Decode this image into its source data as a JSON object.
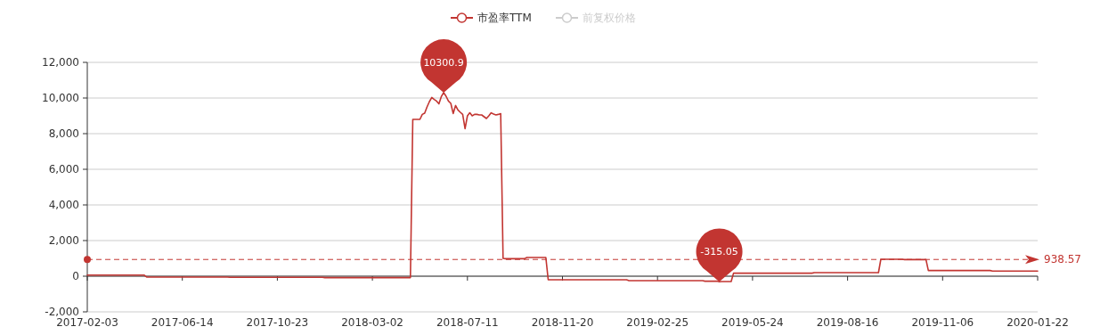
{
  "chart_data": {
    "type": "line",
    "legend": "top",
    "grid": "y",
    "line_style": "solid",
    "categories": [
      "2017-02-03",
      null,
      null,
      null,
      null,
      null,
      null,
      null,
      null,
      null,
      null,
      null,
      null,
      null,
      null,
      null,
      null,
      null,
      null,
      null,
      null,
      null,
      null,
      null,
      null,
      null,
      null,
      null,
      null,
      null,
      null,
      null,
      null,
      null,
      null,
      null,
      null,
      null,
      null,
      null,
      "2017-06-14",
      null,
      null,
      null,
      null,
      null,
      null,
      null,
      null,
      null,
      null,
      null,
      null,
      null,
      null,
      null,
      null,
      null,
      null,
      null,
      null,
      null,
      null,
      null,
      null,
      null,
      null,
      null,
      null,
      null,
      null,
      null,
      null,
      null,
      null,
      null,
      null,
      null,
      null,
      null,
      "2017-10-23",
      null,
      null,
      null,
      null,
      null,
      null,
      null,
      null,
      null,
      null,
      null,
      null,
      null,
      null,
      null,
      null,
      null,
      null,
      null,
      null,
      null,
      null,
      null,
      null,
      null,
      null,
      null,
      null,
      null,
      null,
      null,
      null,
      null,
      null,
      null,
      null,
      null,
      null,
      null,
      "2018-03-02",
      null,
      null,
      null,
      null,
      null,
      null,
      null,
      null,
      null,
      null,
      null,
      null,
      null,
      null,
      null,
      null,
      null,
      null,
      null,
      null,
      null,
      null,
      null,
      null,
      null,
      null,
      null,
      null,
      null,
      null,
      null,
      null,
      null,
      null,
      null,
      null,
      null,
      null,
      null,
      "2018-07-11",
      null,
      null,
      null,
      null,
      null,
      null,
      null,
      null,
      null,
      null,
      null,
      null,
      null,
      null,
      null,
      null,
      null,
      null,
      null,
      null,
      null,
      null,
      null,
      null,
      null,
      null,
      null,
      null,
      null,
      null,
      null,
      null,
      null,
      null,
      null,
      null,
      null,
      null,
      null,
      "2018-11-20",
      null,
      null,
      null,
      null,
      null,
      null,
      null,
      null,
      null,
      null,
      null,
      null,
      null,
      null,
      null,
      null,
      null,
      null,
      null,
      null,
      null,
      null,
      null,
      null,
      null,
      null,
      null,
      null,
      null,
      null,
      null,
      null,
      null,
      null,
      null,
      null,
      null,
      null,
      null,
      "2019-02-25",
      null,
      null,
      null,
      null,
      null,
      null,
      null,
      null,
      null,
      null,
      null,
      null,
      null,
      null,
      null,
      null,
      null,
      null,
      null,
      null,
      null,
      null,
      null,
      null,
      null,
      null,
      null,
      null,
      null,
      null,
      null,
      null,
      null,
      null,
      null,
      null,
      null,
      null,
      null,
      "2019-05-24",
      null,
      null,
      null,
      null,
      null,
      null,
      null,
      null,
      null,
      null,
      null,
      null,
      null,
      null,
      null,
      null,
      null,
      null,
      null,
      null,
      null,
      null,
      null,
      null,
      null,
      null,
      null,
      null,
      null,
      null,
      null,
      null,
      null,
      null,
      null,
      null,
      null,
      null,
      null,
      "2019-08-16",
      null,
      null,
      null,
      null,
      null,
      null,
      null,
      null,
      null,
      null,
      null,
      null,
      null,
      null,
      null,
      null,
      null,
      null,
      null,
      null,
      null,
      null,
      null,
      null,
      null,
      null,
      null,
      null,
      null,
      null,
      null,
      null,
      null,
      null,
      null,
      null,
      null,
      null,
      null,
      "2019-11-06",
      null,
      null,
      null,
      null,
      null,
      null,
      null,
      null,
      null,
      null,
      null,
      null,
      null,
      null,
      null,
      null,
      null,
      null,
      null,
      null,
      null,
      null,
      null,
      null,
      null,
      null,
      null,
      null,
      null,
      null,
      null,
      null,
      null,
      null,
      null,
      null,
      null,
      null,
      null,
      "2020-01-22"
    ],
    "ylim": [
      -2000,
      12000
    ],
    "yticks": [
      {
        "value": -2000,
        "label": "-2,000"
      },
      0,
      {
        "value": 2000,
        "label": "2,000"
      },
      {
        "value": 4000,
        "label": "4,000"
      },
      {
        "value": 6000,
        "label": "6,000"
      },
      {
        "value": 8000,
        "label": "8,000"
      },
      {
        "value": 10000,
        "label": "10,000"
      },
      {
        "value": 12000,
        "label": "12,000"
      }
    ],
    "series": [
      {
        "name": "市盈率TTM",
        "color": "#c23531",
        "values": [
          60,
          60,
          60,
          60,
          60,
          60,
          60,
          60,
          60,
          60,
          60,
          60,
          60,
          60,
          60,
          60,
          60,
          60,
          60,
          60,
          60,
          60,
          60,
          60,
          60,
          -50,
          -50,
          -50,
          -50,
          -50,
          -50,
          -50,
          -50,
          -50,
          -50,
          -50,
          -50,
          -50,
          -50,
          -50,
          -50,
          -50,
          -50,
          -50,
          -50,
          -50,
          -50,
          -50,
          -50,
          -50,
          -50,
          -50,
          -50,
          -50,
          -50,
          -50,
          -50,
          -50,
          -50,
          -50,
          -60,
          -60,
          -60,
          -60,
          -60,
          -60,
          -60,
          -60,
          -60,
          -60,
          -60,
          -60,
          -60,
          -60,
          -60,
          -60,
          -60,
          -60,
          -60,
          -60,
          -60,
          -60,
          -60,
          -60,
          -60,
          -60,
          -60,
          -60,
          -60,
          -60,
          -60,
          -60,
          -60,
          -60,
          -60,
          -60,
          -60,
          -60,
          -60,
          -60,
          -80,
          -80,
          -80,
          -80,
          -80,
          -80,
          -80,
          -80,
          -80,
          -80,
          -80,
          -80,
          -80,
          -80,
          -80,
          -80,
          -80,
          -80,
          -80,
          -80,
          -80,
          -80,
          -80,
          -80,
          -80,
          -80,
          -80,
          -80,
          -80,
          -80,
          -80,
          -80,
          -80,
          -80,
          -80,
          -80,
          -80,
          8800,
          8800,
          8800,
          8800,
          9080,
          9150,
          9500,
          9800,
          10030,
          9920,
          9830,
          9670,
          10080,
          10300.9,
          10100,
          9830,
          9700,
          9130,
          9580,
          9330,
          9200,
          9080,
          8280,
          9000,
          9170,
          9000,
          9080,
          9080,
          9050,
          9050,
          8950,
          8850,
          9000,
          9170,
          9100,
          9050,
          9080,
          9120,
          1000,
          980,
          980,
          980,
          980,
          980,
          980,
          980,
          980,
          980,
          1050,
          1050,
          1050,
          1050,
          1050,
          1050,
          1050,
          1050,
          1050,
          -200,
          -200,
          -200,
          -200,
          -200,
          -200,
          -200,
          -200,
          -200,
          -200,
          -200,
          -200,
          -200,
          -200,
          -200,
          -200,
          -200,
          -200,
          -200,
          -200,
          -200,
          -200,
          -200,
          -200,
          -200,
          -200,
          -200,
          -200,
          -200,
          -200,
          -200,
          -200,
          -200,
          -200,
          -250,
          -250,
          -250,
          -250,
          -250,
          -250,
          -250,
          -250,
          -250,
          -250,
          -250,
          -250,
          -250,
          -250,
          -250,
          -250,
          -250,
          -250,
          -250,
          -250,
          -250,
          -250,
          -250,
          -250,
          -250,
          -250,
          -250,
          -250,
          -250,
          -250,
          -250,
          -250,
          -280,
          -280,
          -280,
          -280,
          -280,
          -280,
          -315.05,
          -300,
          -300,
          -300,
          -300,
          -300,
          170,
          170,
          170,
          170,
          170,
          170,
          170,
          170,
          170,
          170,
          170,
          170,
          170,
          170,
          170,
          170,
          170,
          170,
          170,
          170,
          170,
          170,
          170,
          170,
          170,
          170,
          170,
          170,
          170,
          170,
          170,
          170,
          170,
          170,
          200,
          200,
          200,
          200,
          200,
          200,
          200,
          200,
          200,
          200,
          200,
          200,
          200,
          200,
          200,
          200,
          200,
          200,
          200,
          200,
          200,
          200,
          200,
          200,
          200,
          200,
          200,
          200,
          950,
          950,
          950,
          950,
          950,
          950,
          950,
          950,
          950,
          950,
          930,
          930,
          930,
          930,
          930,
          930,
          930,
          930,
          930,
          930,
          320,
          320,
          320,
          320,
          320,
          320,
          320,
          320,
          320,
          320,
          320,
          320,
          320,
          320,
          320,
          320,
          320,
          320,
          320,
          320,
          320,
          320,
          320,
          320,
          320,
          320,
          320,
          290,
          290,
          290,
          290,
          290,
          290,
          290,
          290,
          290,
          290,
          290,
          290,
          290,
          290,
          290,
          290,
          290,
          290,
          290,
          290
        ]
      },
      {
        "name": "前复权价格",
        "color": "#cccccc",
        "values": [
          null,
          null,
          null,
          null,
          null,
          null,
          null,
          null,
          null,
          null,
          null,
          null,
          null,
          null,
          null,
          null,
          null,
          null,
          null,
          null,
          null,
          null,
          null,
          null,
          null,
          null,
          null,
          null,
          null,
          null,
          null,
          null,
          null,
          null,
          null,
          null,
          null,
          null,
          null,
          null,
          null,
          null,
          null,
          null,
          null,
          null,
          null,
          null,
          null,
          null,
          null,
          null,
          null,
          null,
          null,
          null,
          null,
          null,
          null,
          null,
          null,
          null,
          null,
          null,
          null,
          null,
          null,
          null,
          null,
          null,
          null,
          null,
          null,
          null,
          null,
          null,
          null,
          null,
          null,
          null,
          null,
          null,
          null,
          null,
          null,
          null,
          null,
          null,
          null,
          null,
          null,
          null,
          null,
          null,
          null,
          null,
          null,
          null,
          null,
          null,
          null,
          null,
          null,
          null,
          null,
          null,
          null,
          null,
          null,
          null,
          null,
          null,
          null,
          null,
          null,
          null,
          null,
          null,
          null,
          null,
          null,
          null,
          null,
          null,
          null,
          null,
          null,
          null,
          null,
          null,
          null,
          null,
          null,
          null,
          null,
          null,
          null,
          null,
          null,
          null,
          null,
          null,
          null,
          null,
          null,
          null,
          null,
          null,
          null,
          null,
          null,
          null,
          null,
          null,
          null,
          null,
          null,
          null,
          null,
          null,
          null,
          null,
          null,
          null,
          null,
          null,
          null,
          null,
          null,
          null,
          null,
          null,
          null,
          null,
          null,
          null,
          null,
          null,
          null,
          null,
          null,
          null,
          null,
          null,
          null,
          null,
          null,
          null,
          null,
          null,
          null,
          null,
          null,
          null,
          null,
          null,
          null,
          null,
          null,
          null,
          null,
          null,
          null,
          null,
          null,
          null,
          null,
          null,
          null,
          null,
          null,
          null,
          null,
          null,
          null,
          null,
          null,
          null,
          null,
          null,
          null,
          null,
          null,
          null,
          null,
          null,
          null,
          null,
          null,
          null,
          null,
          null,
          null,
          null,
          null,
          null,
          null,
          null,
          null,
          null,
          null,
          null,
          null,
          null,
          null,
          null,
          null,
          null,
          null,
          null,
          null,
          null,
          null,
          null,
          null,
          null,
          null,
          null,
          null,
          null,
          null,
          null,
          null,
          null,
          null,
          null,
          null,
          null,
          null,
          null,
          null,
          null,
          null,
          null,
          null,
          null,
          null,
          null,
          null,
          null,
          null,
          null,
          null,
          null,
          null,
          null,
          null,
          null,
          null,
          null,
          null,
          null,
          null,
          null,
          null,
          null,
          null,
          null,
          null,
          null,
          null,
          null,
          null,
          null,
          null,
          null,
          null,
          null,
          null,
          null,
          null,
          null,
          null,
          null,
          null,
          null,
          null,
          null,
          null,
          null,
          null,
          null,
          null,
          null,
          null,
          null,
          null,
          null,
          null,
          null,
          null,
          null,
          null,
          null,
          null,
          null,
          null,
          null,
          null,
          null,
          null,
          null,
          null,
          null,
          null,
          null,
          null,
          null,
          null,
          null,
          null,
          null,
          null,
          null,
          null,
          null,
          null,
          null,
          null,
          null,
          null,
          null,
          null,
          null,
          null,
          null,
          null,
          null,
          null,
          null,
          null,
          null,
          null,
          null,
          null,
          null,
          null,
          null,
          null,
          null,
          null,
          null,
          null,
          null,
          null,
          null,
          null,
          null,
          null,
          null,
          null,
          null,
          null,
          null,
          null,
          null,
          null,
          null,
          null,
          null,
          null
        ]
      }
    ],
    "ref_lines": [
      {
        "axis": "y",
        "value": 938.57,
        "label": "938.57",
        "color": "#c23531",
        "line_style": "dashed"
      }
    ],
    "annotations": [
      {
        "text": "10300.9",
        "y": 10300.9
      },
      {
        "text": "-315.05",
        "y": -315.05
      }
    ]
  }
}
